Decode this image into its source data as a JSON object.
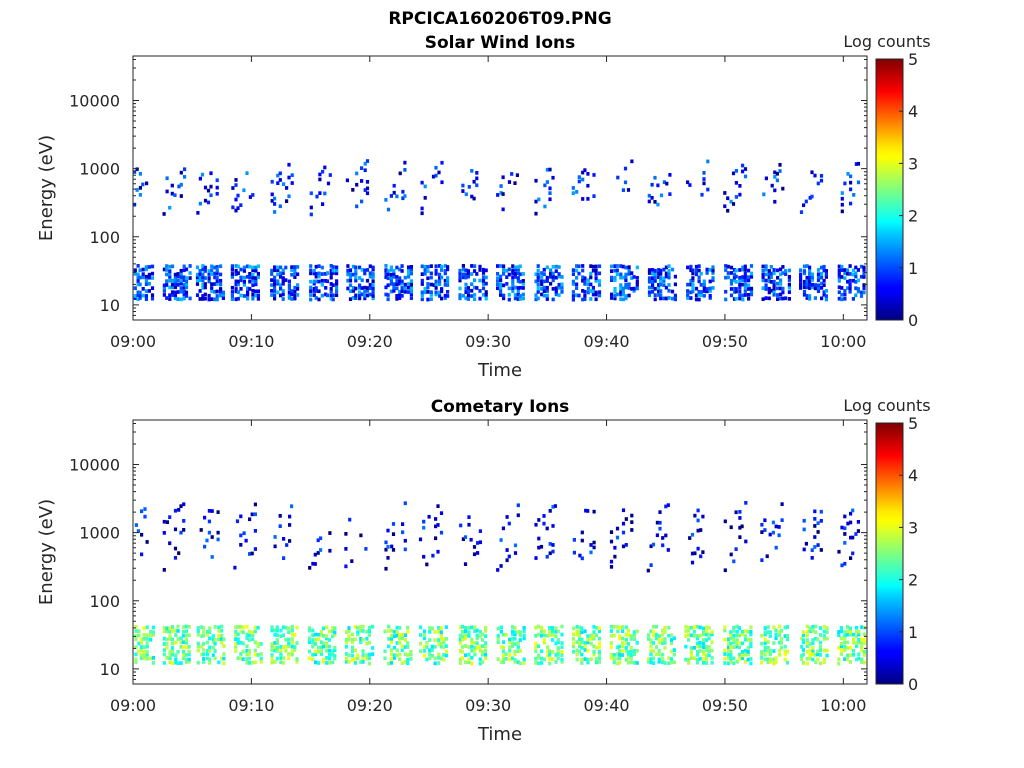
{
  "figure": {
    "title": "RPCICA160206T09.PNG"
  },
  "chart_data": [
    {
      "type": "heatmap",
      "title": "Solar Wind Ions",
      "xlabel": "Time",
      "ylabel": "Energy (eV)",
      "x_ticks": [
        "09:00",
        "09:10",
        "09:20",
        "09:30",
        "09:40",
        "09:50",
        "10:00"
      ],
      "y_ticks": [
        "10",
        "100",
        "1000",
        "10000"
      ],
      "y_scale": "log",
      "x_range_minutes": [
        0,
        62
      ],
      "y_range_eV": [
        6,
        45000
      ],
      "colorbar": {
        "label": "Log counts",
        "ticks": [
          "0",
          "1",
          "2",
          "3",
          "4",
          "5"
        ],
        "range": [
          0,
          5
        ],
        "colormap": "jet"
      },
      "bursts_minutes": [
        0.3,
        3.5,
        6.3,
        9.3,
        12.6,
        15.9,
        19.0,
        22.2,
        25.3,
        28.5,
        31.7,
        34.9,
        38.1,
        41.3,
        44.5,
        47.7,
        50.9,
        54.1,
        57.3,
        60.5
      ],
      "bands_eV": [
        {
          "name": "low band",
          "range": [
            12,
            40
          ],
          "level": 0.9
        },
        {
          "name": "high band",
          "range": [
            300,
            1100
          ],
          "level": 0.7
        }
      ]
    },
    {
      "type": "heatmap",
      "title": "Cometary Ions",
      "xlabel": "Time",
      "ylabel": "Energy (eV)",
      "x_ticks": [
        "09:00",
        "09:10",
        "09:20",
        "09:30",
        "09:40",
        "09:50",
        "10:00"
      ],
      "y_ticks": [
        "10",
        "100",
        "1000",
        "10000"
      ],
      "y_scale": "log",
      "x_range_minutes": [
        0,
        62
      ],
      "y_range_eV": [
        6,
        45000
      ],
      "colorbar": {
        "label": "Log counts",
        "ticks": [
          "0",
          "1",
          "2",
          "3",
          "4",
          "5"
        ],
        "range": [
          0,
          5
        ],
        "colormap": "jet"
      },
      "bursts_minutes": [
        0.4,
        3.5,
        6.4,
        9.5,
        12.6,
        15.8,
        18.9,
        22.2,
        25.2,
        28.5,
        31.7,
        34.9,
        38.1,
        41.3,
        44.4,
        47.6,
        50.9,
        54.0,
        57.3,
        60.5
      ],
      "bands_eV": [
        {
          "name": "low band",
          "range": [
            12,
            45
          ],
          "level": 2.4
        },
        {
          "name": "high band",
          "range": [
            400,
            2500
          ],
          "level": 0.5
        }
      ]
    }
  ]
}
